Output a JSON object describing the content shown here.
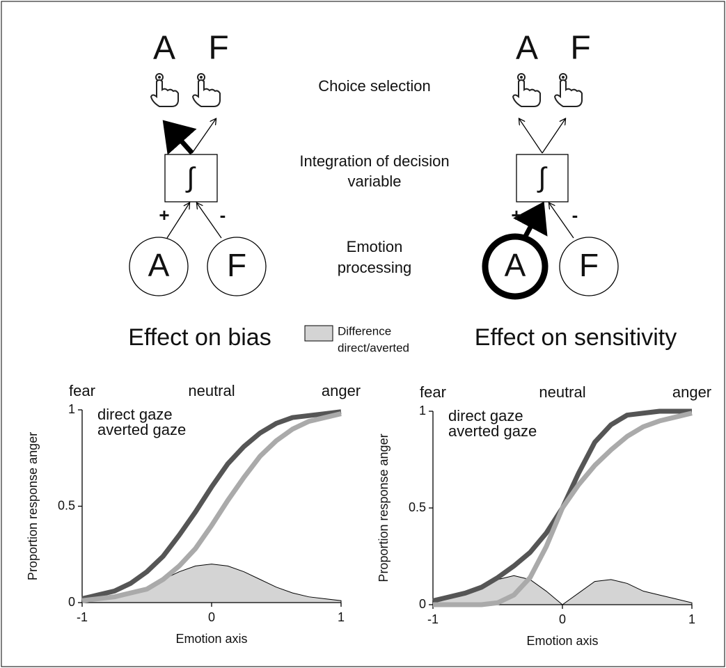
{
  "diagram": {
    "stages": [
      [
        "Choice selection"
      ],
      [
        "Integration of decision",
        "variable"
      ],
      [
        "Emotion",
        "processing"
      ]
    ],
    "panels": [
      {
        "title": "Effect on bias",
        "choices": [
          "A",
          "F"
        ],
        "integrator": "∫",
        "signs": [
          "+",
          "-"
        ],
        "emotions": [
          "A",
          "F"
        ]
      },
      {
        "title": "Effect on sensitivity",
        "choices": [
          "A",
          "F"
        ],
        "integrator": "∫",
        "signs": [
          "+",
          "-"
        ],
        "emotions": [
          "A",
          "F"
        ]
      }
    ],
    "legend": [
      "Difference",
      "direct/averted"
    ]
  },
  "chart_data": [
    {
      "type": "line",
      "annotations": [
        "fear",
        "neutral",
        "anger"
      ],
      "ylabel": "Proportion response anger",
      "xlabel": "Emotion axis",
      "xlim": [
        -1,
        1
      ],
      "xticks": [
        -1,
        0,
        1
      ],
      "ylim": [
        0,
        1
      ],
      "yticks": [
        0,
        0.5,
        1
      ],
      "x": [
        -1,
        -0.875,
        -0.75,
        -0.625,
        -0.5,
        -0.375,
        -0.25,
        -0.125,
        0,
        0.125,
        0.25,
        0.375,
        0.5,
        0.625,
        0.75,
        0.875,
        1
      ],
      "series": [
        {
          "name": "direct gaze",
          "color": "#555555",
          "values": [
            0.02,
            0.04,
            0.06,
            0.1,
            0.16,
            0.24,
            0.35,
            0.47,
            0.6,
            0.72,
            0.81,
            0.88,
            0.93,
            0.96,
            0.97,
            0.98,
            0.99
          ]
        },
        {
          "name": "averted gaze",
          "color": "#aaaaaa",
          "values": [
            0.01,
            0.02,
            0.03,
            0.05,
            0.07,
            0.12,
            0.19,
            0.28,
            0.4,
            0.53,
            0.65,
            0.76,
            0.84,
            0.9,
            0.94,
            0.96,
            0.98
          ]
        }
      ],
      "area": {
        "color": "#d4d4d4",
        "values": [
          0.01,
          0.02,
          0.03,
          0.05,
          0.08,
          0.12,
          0.16,
          0.19,
          0.2,
          0.19,
          0.16,
          0.12,
          0.08,
          0.05,
          0.03,
          0.02,
          0.01
        ]
      }
    },
    {
      "type": "line",
      "annotations": [
        "fear",
        "neutral",
        "anger"
      ],
      "ylabel": "Proportion response anger",
      "xlabel": "Emotion axis",
      "xlim": [
        -1,
        1
      ],
      "xticks": [
        -1,
        0,
        1
      ],
      "ylim": [
        0,
        1
      ],
      "yticks": [
        0,
        0.5,
        1
      ],
      "x": [
        -1,
        -0.875,
        -0.75,
        -0.625,
        -0.5,
        -0.375,
        -0.25,
        -0.125,
        0,
        0.125,
        0.25,
        0.375,
        0.5,
        0.625,
        0.75,
        0.875,
        1
      ],
      "series": [
        {
          "name": "direct gaze",
          "color": "#555555",
          "values": [
            0.02,
            0.04,
            0.06,
            0.09,
            0.14,
            0.2,
            0.27,
            0.37,
            0.5,
            0.68,
            0.84,
            0.93,
            0.98,
            0.99,
            1,
            1,
            1
          ]
        },
        {
          "name": "averted gaze",
          "color": "#aaaaaa",
          "values": [
            0,
            0,
            0,
            0,
            0.01,
            0.05,
            0.14,
            0.3,
            0.5,
            0.62,
            0.72,
            0.8,
            0.87,
            0.92,
            0.95,
            0.97,
            0.99
          ]
        }
      ],
      "area": {
        "color": "#d4d4d4",
        "values": [
          0.02,
          0.04,
          0.06,
          0.09,
          0.13,
          0.15,
          0.13,
          0.07,
          0,
          0.06,
          0.12,
          0.13,
          0.11,
          0.07,
          0.05,
          0.03,
          0.01
        ]
      }
    }
  ]
}
